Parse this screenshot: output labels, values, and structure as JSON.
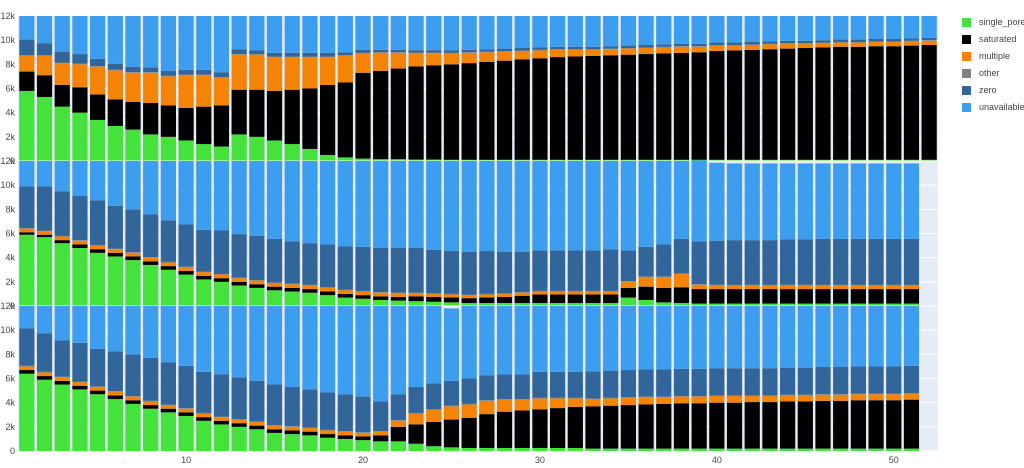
{
  "chart_data": {
    "type": "bar",
    "stacked": true,
    "x": [
      1,
      2,
      3,
      4,
      5,
      6,
      7,
      8,
      9,
      10,
      11,
      12,
      13,
      14,
      15,
      16,
      17,
      18,
      19,
      20,
      21,
      22,
      23,
      24,
      25,
      26,
      27,
      28,
      29,
      30,
      31,
      32,
      33,
      34,
      35,
      36,
      37,
      38,
      39,
      40,
      41,
      42,
      43,
      44,
      45,
      46,
      47,
      48,
      49,
      50,
      51,
      52
    ],
    "x_ticks": [
      10,
      20,
      30,
      40,
      50
    ],
    "y_ticks": [
      0,
      2000,
      4000,
      6000,
      8000,
      10000,
      12000
    ],
    "y_tick_labels": [
      "0",
      "2k",
      "4k",
      "6k",
      "8k",
      "10k",
      "12k"
    ],
    "ylim": [
      0,
      12000
    ],
    "legend": {
      "position": "top-right",
      "entries": [
        "single_pore",
        "saturated",
        "multiple",
        "other",
        "zero",
        "unavailable"
      ]
    },
    "colors": {
      "single_pore": "#44e23a",
      "saturated": "#000000",
      "multiple": "#f58305",
      "other": "#808080",
      "zero": "#32669b",
      "unavailable": "#3d9ef0"
    },
    "panels": [
      {
        "n_bars": 52,
        "single_pore": [
          5800,
          5300,
          4500,
          4000,
          3400,
          2900,
          2600,
          2200,
          2000,
          1700,
          1400,
          1200,
          2200,
          2000,
          1700,
          1400,
          1000,
          500,
          300,
          200,
          150,
          150,
          120,
          120,
          100,
          100,
          100,
          100,
          100,
          100,
          100,
          100,
          100,
          100,
          100,
          100,
          100,
          100,
          100,
          100,
          100,
          100,
          100,
          100,
          100,
          100,
          100,
          100,
          100,
          100,
          100,
          100
        ],
        "saturated": [
          1600,
          1800,
          1800,
          2100,
          2100,
          2200,
          2300,
          2600,
          2600,
          2700,
          3100,
          3400,
          3700,
          3900,
          4100,
          4500,
          5000,
          5800,
          6200,
          7100,
          7300,
          7500,
          7700,
          7800,
          7900,
          8000,
          8100,
          8200,
          8300,
          8400,
          8500,
          8550,
          8600,
          8650,
          8700,
          8750,
          8800,
          8850,
          8900,
          9000,
          9050,
          9100,
          9150,
          9200,
          9250,
          9300,
          9350,
          9350,
          9400,
          9400,
          9450,
          9500
        ],
        "multiple": [
          1300,
          1600,
          1800,
          1900,
          2300,
          2400,
          2400,
          2500,
          2400,
          2700,
          2600,
          2300,
          2900,
          2900,
          2800,
          2700,
          2600,
          2300,
          2200,
          1600,
          1500,
          1300,
          1100,
          1000,
          900,
          850,
          800,
          750,
          700,
          650,
          600,
          550,
          500,
          500,
          500,
          500,
          500,
          500,
          450,
          450,
          400,
          400,
          400,
          400,
          350,
          350,
          350,
          350,
          350,
          350,
          350,
          350
        ],
        "other": [
          50,
          50,
          50,
          50,
          50,
          50,
          50,
          50,
          50,
          50,
          50,
          50,
          50,
          50,
          50,
          50,
          50,
          50,
          50,
          50,
          50,
          50,
          50,
          50,
          50,
          50,
          50,
          50,
          50,
          50,
          50,
          50,
          50,
          50,
          50,
          50,
          50,
          50,
          50,
          50,
          50,
          50,
          50,
          50,
          50,
          50,
          50,
          50,
          50,
          50,
          50,
          50
        ],
        "zero": [
          1300,
          1000,
          900,
          800,
          600,
          500,
          450,
          400,
          400,
          400,
          400,
          400,
          400,
          300,
          300,
          300,
          300,
          300,
          250,
          250,
          200,
          200,
          200,
          200,
          200,
          200,
          200,
          200,
          200,
          200,
          200,
          200,
          200,
          200,
          200,
          200,
          200,
          200,
          200,
          200,
          200,
          200,
          200,
          200,
          200,
          200,
          200,
          200,
          200,
          200,
          200,
          200
        ],
        "unavailable": [
          1950,
          2250,
          2950,
          3150,
          3550,
          3950,
          4200,
          4250,
          4550,
          4450,
          4450,
          4650,
          2750,
          2850,
          3050,
          3050,
          3050,
          3050,
          3000,
          2800,
          2800,
          2800,
          2830,
          2830,
          2850,
          2800,
          2750,
          2700,
          2650,
          2600,
          2550,
          2550,
          2550,
          2500,
          2450,
          2400,
          2350,
          2300,
          2300,
          2200,
          2200,
          2150,
          2100,
          2050,
          2050,
          2000,
          1950,
          1950,
          1900,
          1900,
          1850,
          1800
        ]
      },
      {
        "n_bars": 51,
        "single_pore": [
          5900,
          5700,
          5200,
          4800,
          4400,
          4100,
          3800,
          3400,
          3000,
          2600,
          2200,
          2000,
          1700,
          1500,
          1300,
          1200,
          1100,
          900,
          700,
          600,
          500,
          450,
          400,
          350,
          300,
          250,
          250,
          250,
          250,
          250,
          250,
          250,
          250,
          250,
          700,
          500,
          300,
          250,
          200,
          200,
          200,
          200,
          200,
          200,
          200,
          200,
          200,
          200,
          200,
          200,
          200
        ],
        "saturated": [
          200,
          200,
          250,
          300,
          300,
          300,
          300,
          300,
          300,
          300,
          300,
          300,
          300,
          300,
          300,
          300,
          300,
          300,
          300,
          300,
          300,
          300,
          400,
          400,
          400,
          400,
          450,
          500,
          600,
          700,
          700,
          700,
          700,
          700,
          800,
          1100,
          1200,
          1300,
          1200,
          1200,
          1200,
          1200,
          1200,
          1200,
          1200,
          1200,
          1200,
          1200,
          1200,
          1200,
          1200
        ],
        "multiple": [
          300,
          300,
          300,
          300,
          300,
          300,
          300,
          300,
          300,
          300,
          300,
          300,
          300,
          300,
          300,
          300,
          300,
          300,
          300,
          300,
          300,
          300,
          250,
          250,
          250,
          250,
          250,
          250,
          250,
          250,
          250,
          250,
          250,
          250,
          500,
          800,
          900,
          1100,
          350,
          300,
          300,
          300,
          300,
          300,
          300,
          300,
          300,
          300,
          300,
          300,
          300
        ],
        "other": [
          50,
          50,
          50,
          50,
          50,
          50,
          50,
          50,
          50,
          50,
          50,
          50,
          50,
          50,
          50,
          50,
          50,
          50,
          50,
          50,
          50,
          50,
          50,
          50,
          50,
          50,
          50,
          50,
          50,
          50,
          50,
          50,
          50,
          50,
          50,
          50,
          50,
          50,
          50,
          50,
          50,
          50,
          50,
          50,
          50,
          50,
          50,
          50,
          50,
          50,
          50
        ],
        "zero": [
          3450,
          3650,
          3700,
          3650,
          3700,
          3550,
          3550,
          3550,
          3450,
          3500,
          3450,
          3600,
          3600,
          3650,
          3600,
          3500,
          3450,
          3550,
          3600,
          3650,
          3650,
          3700,
          3700,
          3600,
          3550,
          3550,
          3550,
          3450,
          3350,
          3350,
          3350,
          3350,
          3350,
          3450,
          2550,
          2450,
          2650,
          2850,
          3550,
          3650,
          3700,
          3700,
          3700,
          3750,
          3750,
          3800,
          3800,
          3800,
          3800,
          3800,
          3800
        ],
        "unavailable": [
          2100,
          2100,
          2500,
          2900,
          3250,
          3700,
          4000,
          4400,
          4900,
          5250,
          5700,
          5750,
          6050,
          6200,
          6450,
          6650,
          6800,
          6900,
          7050,
          7100,
          7200,
          7200,
          7200,
          7350,
          7450,
          7500,
          7450,
          7500,
          7500,
          7400,
          7400,
          7400,
          7400,
          7300,
          7400,
          7100,
          6900,
          6450,
          6700,
          6450,
          6350,
          6350,
          6350,
          6300,
          6300,
          6250,
          6250,
          6250,
          6250,
          6250,
          6250
        ]
      },
      {
        "n_bars": 51,
        "single_pore": [
          6400,
          5900,
          5500,
          5100,
          4700,
          4300,
          3900,
          3500,
          3200,
          2900,
          2500,
          2200,
          2000,
          1800,
          1500,
          1400,
          1300,
          1100,
          1000,
          900,
          800,
          800,
          600,
          400,
          300,
          250,
          250,
          250,
          250,
          250,
          250,
          250,
          200,
          200,
          200,
          200,
          200,
          200,
          200,
          200,
          200,
          200,
          200,
          200,
          200,
          200,
          200,
          200,
          200,
          200,
          200
        ],
        "saturated": [
          300,
          300,
          300,
          300,
          300,
          300,
          300,
          300,
          300,
          300,
          300,
          300,
          300,
          300,
          300,
          300,
          300,
          300,
          300,
          300,
          500,
          1200,
          1600,
          2000,
          2300,
          2500,
          2800,
          3000,
          3100,
          3200,
          3300,
          3400,
          3500,
          3550,
          3600,
          3650,
          3700,
          3750,
          3750,
          3800,
          3800,
          3850,
          3850,
          3900,
          3900,
          3950,
          3950,
          4000,
          4000,
          4000,
          4050
        ],
        "multiple": [
          300,
          300,
          300,
          300,
          300,
          300,
          300,
          300,
          300,
          300,
          300,
          300,
          300,
          300,
          300,
          300,
          300,
          300,
          300,
          300,
          300,
          500,
          900,
          1000,
          1100,
          1100,
          1100,
          1000,
          900,
          900,
          800,
          700,
          600,
          600,
          600,
          600,
          550,
          550,
          550,
          550,
          550,
          500,
          500,
          500,
          500,
          500,
          500,
          500,
          500,
          500,
          500
        ],
        "other": [
          50,
          50,
          50,
          50,
          50,
          50,
          50,
          50,
          50,
          50,
          50,
          50,
          50,
          50,
          50,
          50,
          50,
          50,
          50,
          50,
          50,
          50,
          50,
          50,
          50,
          50,
          50,
          50,
          50,
          50,
          50,
          50,
          50,
          50,
          50,
          50,
          50,
          50,
          50,
          50,
          50,
          50,
          50,
          50,
          50,
          50,
          50,
          50,
          50,
          50,
          50
        ],
        "zero": [
          3100,
          3200,
          3000,
          3200,
          3100,
          3300,
          3450,
          3550,
          3500,
          3500,
          3400,
          3500,
          3450,
          3350,
          3350,
          3250,
          3150,
          3100,
          3050,
          2950,
          2450,
          2150,
          2150,
          2150,
          2050,
          2100,
          2050,
          2050,
          2050,
          2150,
          2150,
          2150,
          2250,
          2250,
          2250,
          2250,
          2250,
          2250,
          2250,
          2250,
          2250,
          2250,
          2250,
          2250,
          2250,
          2250,
          2250,
          2250,
          2250,
          2250,
          2250
        ],
        "unavailable": [
          1850,
          2250,
          2850,
          3050,
          3550,
          3750,
          4000,
          4300,
          4650,
          4950,
          5450,
          5650,
          5900,
          6200,
          6500,
          6700,
          6900,
          7150,
          7300,
          7500,
          7900,
          7300,
          6700,
          6400,
          6000,
          6000,
          5750,
          5650,
          5650,
          5450,
          5450,
          5450,
          5400,
          5350,
          5300,
          5250,
          5250,
          5200,
          5200,
          5150,
          5150,
          5150,
          5150,
          5100,
          5100,
          5050,
          5050,
          5000,
          5000,
          5000,
          4950
        ]
      }
    ]
  }
}
